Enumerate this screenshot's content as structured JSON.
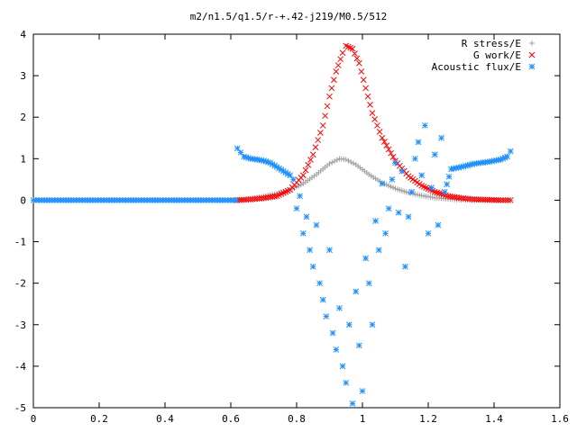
{
  "chart_data": {
    "type": "scatter",
    "title": "m2/n1.5/q1.5/r-+.42-j219/M0.5/512",
    "xlabel": "",
    "ylabel": "",
    "xlim": [
      0,
      1.6
    ],
    "ylim": [
      -5,
      4
    ],
    "x_ticks": [
      0,
      0.2,
      0.4,
      0.6,
      0.8,
      1,
      1.2,
      1.4,
      1.6
    ],
    "x_tick_labels": [
      "0",
      "0.2",
      "0.4",
      "0.6",
      "0.8",
      "1",
      "1.2",
      "1.4",
      "1.6"
    ],
    "y_ticks": [
      4,
      3,
      2,
      1,
      0,
      -1,
      -2,
      -3,
      -4,
      -5
    ],
    "y_tick_labels": [
      "4",
      "3",
      "2",
      "1",
      "0",
      "-1",
      "-2",
      "-3",
      "-4",
      "-5"
    ],
    "legend_position": "top-right",
    "series": [
      {
        "name": "R stress/E",
        "color": "#a0a0a0",
        "marker": "plus",
        "x": [
          0.62,
          0.66,
          0.7,
          0.74,
          0.78,
          0.82,
          0.86,
          0.9,
          0.93,
          0.95,
          0.98,
          1.02,
          1.06,
          1.1,
          1.14,
          1.18,
          1.22,
          1.26,
          1.3,
          1.34,
          1.38,
          1.42,
          1.45
        ],
        "y": [
          0.0,
          0.04,
          0.09,
          0.16,
          0.25,
          0.4,
          0.62,
          0.88,
          1.0,
          0.98,
          0.86,
          0.62,
          0.42,
          0.28,
          0.18,
          0.11,
          0.06,
          0.03,
          0.01,
          0.0,
          0.0,
          0.0,
          0.0
        ]
      },
      {
        "name": "G work/E",
        "color": "#ff0000",
        "marker": "cross",
        "x": [
          0.62,
          0.66,
          0.7,
          0.74,
          0.78,
          0.82,
          0.85,
          0.88,
          0.9,
          0.92,
          0.94,
          0.95,
          0.97,
          0.99,
          1.01,
          1.03,
          1.06,
          1.1,
          1.14,
          1.18,
          1.22,
          1.26,
          1.3,
          1.34,
          1.38,
          1.42,
          1.45
        ],
        "y": [
          0.0,
          0.02,
          0.05,
          0.1,
          0.25,
          0.6,
          1.1,
          1.8,
          2.5,
          3.1,
          3.55,
          3.72,
          3.65,
          3.3,
          2.7,
          2.1,
          1.5,
          0.95,
          0.58,
          0.35,
          0.2,
          0.1,
          0.05,
          0.02,
          0.01,
          0.0,
          0.0
        ]
      },
      {
        "name": "Acoustic flux/E",
        "color": "#1e90ff",
        "marker": "star",
        "x": [
          0.0,
          0.62,
          0.63,
          0.64,
          0.66,
          0.68,
          0.7,
          0.72,
          0.74,
          0.76,
          0.78,
          0.79,
          0.8,
          0.81,
          0.82,
          0.83,
          0.84,
          0.85,
          0.86,
          0.87,
          0.88,
          0.89,
          0.9,
          0.91,
          0.92,
          0.93,
          0.94,
          0.95,
          0.96,
          0.97,
          0.98,
          0.99,
          1.0,
          1.01,
          1.02,
          1.03,
          1.04,
          1.05,
          1.06,
          1.07,
          1.08,
          1.09,
          1.1,
          1.11,
          1.12,
          1.13,
          1.14,
          1.15,
          1.16,
          1.17,
          1.18,
          1.19,
          1.2,
          1.21,
          1.22,
          1.23,
          1.24,
          1.25,
          1.27,
          1.3,
          1.34,
          1.38,
          1.42,
          1.44,
          1.45
        ],
        "y": [
          0.0,
          1.25,
          1.15,
          1.05,
          1.0,
          0.98,
          0.95,
          0.9,
          0.8,
          0.7,
          0.6,
          0.5,
          -0.2,
          0.1,
          -0.8,
          -0.4,
          -1.2,
          -1.6,
          -0.6,
          -2.0,
          -2.4,
          -2.8,
          -1.2,
          -3.2,
          -3.6,
          -2.6,
          -4.0,
          -4.4,
          -3.0,
          -4.9,
          -2.2,
          -3.5,
          -4.6,
          -1.4,
          -2.0,
          -3.0,
          -0.5,
          -1.2,
          0.4,
          -0.8,
          -0.2,
          0.5,
          0.9,
          -0.3,
          0.7,
          -1.6,
          -0.4,
          0.2,
          1.0,
          1.4,
          0.6,
          1.8,
          -0.8,
          0.3,
          1.1,
          -0.6,
          1.5,
          0.2,
          0.75,
          0.8,
          0.88,
          0.92,
          0.98,
          1.05,
          1.18
        ]
      }
    ]
  }
}
